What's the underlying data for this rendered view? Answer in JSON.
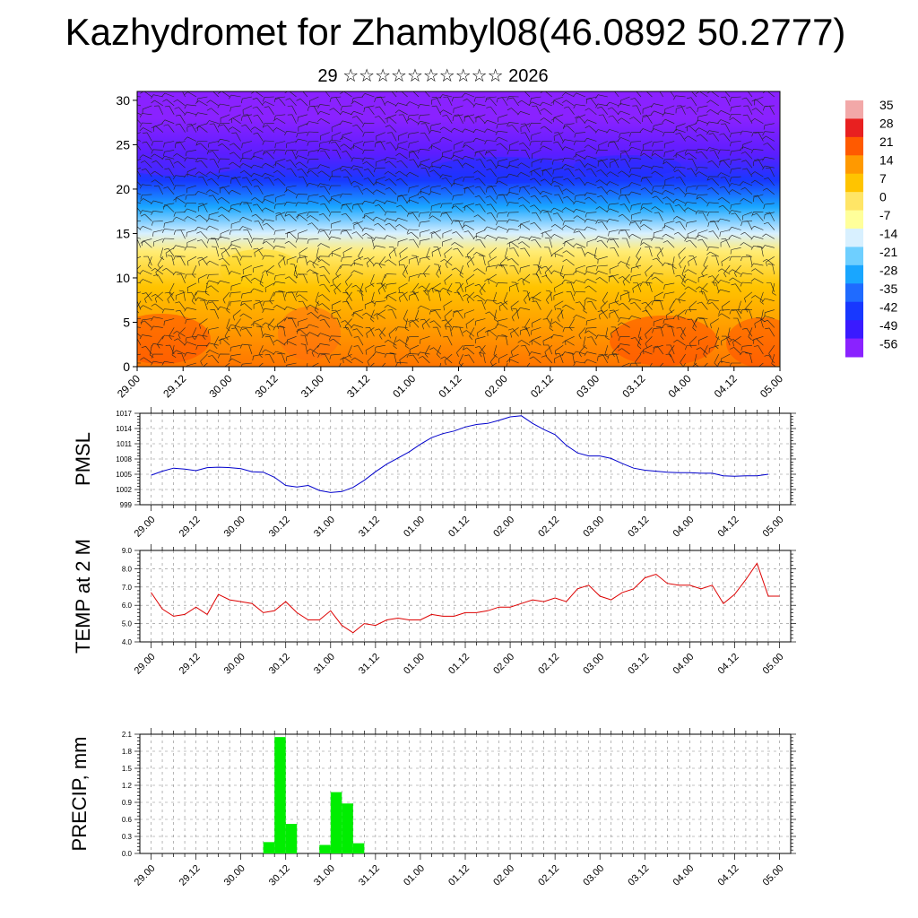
{
  "title": "Kazhydromet for Zhambyl08(46.0892 50.2777)",
  "subtitle": "29 ☆☆☆☆☆☆☆☆☆☆ 2026",
  "time_ticks": [
    "29.00",
    "29.12",
    "30.00",
    "30.12",
    "31.00",
    "31.12",
    "01.00",
    "01.12",
    "02.00",
    "02.12",
    "03.00",
    "03.12",
    "04.00",
    "04.12",
    "05.00"
  ],
  "chart_data": [
    {
      "type": "heatmap",
      "name": "temperature-wind cross-section",
      "title": "",
      "xlabel": "",
      "ylabel": "",
      "x_tick_labels": [
        "29.00",
        "29.12",
        "30.00",
        "30.12",
        "31.00",
        "31.12",
        "01.00",
        "01.12",
        "02.00",
        "02.12",
        "03.00",
        "03.12",
        "04.00",
        "04.12",
        "05.00"
      ],
      "ylim": [
        0,
        31
      ],
      "y_ticks": [
        0,
        5,
        10,
        15,
        20,
        25,
        30
      ],
      "colorbar": {
        "labels": [
          "35",
          "28",
          "21",
          "14",
          "7",
          "0",
          "-7",
          "-14",
          "-21",
          "-28",
          "-35",
          "-42",
          "-49",
          "-56"
        ],
        "colors": [
          "#f2a8a8",
          "#e82020",
          "#ff5a00",
          "#ff9900",
          "#ffc400",
          "#ffe566",
          "#ffff9a",
          "#d8f0ff",
          "#6ecfff",
          "#19a6ff",
          "#1f6bff",
          "#1838ff",
          "#3a1aff",
          "#8a22ff"
        ]
      },
      "level_band_temps": [
        {
          "level": 0,
          "temp": 18
        },
        {
          "level": 4,
          "temp": 14
        },
        {
          "level": 9,
          "temp": 7
        },
        {
          "level": 13,
          "temp": -2
        },
        {
          "level": 15,
          "temp": -14
        },
        {
          "level": 18,
          "temp": -28
        },
        {
          "level": 21,
          "temp": -42
        },
        {
          "level": 24,
          "temp": -52
        },
        {
          "level": 28,
          "temp": -56
        },
        {
          "level": 31,
          "temp": -60
        }
      ]
    },
    {
      "type": "line",
      "name": "PMSL",
      "ylabel": "PMSL",
      "ylim": [
        999,
        1017
      ],
      "y_tick_labels": [
        "999",
        "1002",
        "1005",
        "1008",
        "1011",
        "1014",
        "1017"
      ],
      "x_tick_labels": [
        "29.00",
        "29.12",
        "30.00",
        "30.12",
        "31.00",
        "31.12",
        "01.00",
        "01.12",
        "02.00",
        "02.12",
        "03.00",
        "03.12",
        "04.00",
        "04.12",
        "05.00"
      ],
      "color": "#0000cc",
      "values": [
        1004.8,
        1005.6,
        1006.2,
        1006.0,
        1005.7,
        1006.3,
        1006.4,
        1006.3,
        1006.1,
        1005.5,
        1005.4,
        1004.4,
        1002.8,
        1002.5,
        1002.8,
        1001.8,
        1001.4,
        1001.6,
        1002.4,
        1003.8,
        1005.5,
        1007.0,
        1008.2,
        1009.4,
        1010.9,
        1012.2,
        1013.0,
        1013.5,
        1014.3,
        1014.8,
        1015.0,
        1015.6,
        1016.3,
        1016.5,
        1015.0,
        1013.8,
        1012.8,
        1010.7,
        1009.2,
        1008.6,
        1008.6,
        1008.1,
        1007.1,
        1006.2,
        1005.8,
        1005.6,
        1005.4,
        1005.3,
        1005.3,
        1005.2,
        1005.2,
        1004.7,
        1004.6,
        1004.7,
        1004.7,
        1005.0
      ]
    },
    {
      "type": "line",
      "name": "TEMP at 2 M",
      "ylabel": "TEMP at 2 M",
      "ylim": [
        4.0,
        9.0
      ],
      "y_tick_labels": [
        "4.0",
        "5.0",
        "6.0",
        "7.0",
        "8.0",
        "9.0"
      ],
      "x_tick_labels": [
        "29.00",
        "29.12",
        "30.00",
        "30.12",
        "31.00",
        "31.12",
        "01.00",
        "01.12",
        "02.00",
        "02.12",
        "03.00",
        "03.12",
        "04.00",
        "04.12",
        "05.00"
      ],
      "color": "#dd0000",
      "values": [
        6.7,
        5.8,
        5.4,
        5.5,
        5.9,
        5.5,
        6.6,
        6.3,
        6.2,
        6.1,
        5.6,
        5.7,
        6.2,
        5.6,
        5.2,
        5.2,
        5.7,
        4.9,
        4.5,
        5.0,
        4.9,
        5.2,
        5.3,
        5.2,
        5.2,
        5.5,
        5.4,
        5.4,
        5.6,
        5.6,
        5.7,
        5.9,
        5.9,
        6.1,
        6.3,
        6.2,
        6.4,
        6.2,
        6.9,
        7.1,
        6.5,
        6.3,
        6.7,
        6.9,
        7.5,
        7.7,
        7.2,
        7.1,
        7.1,
        6.9,
        7.1,
        6.1,
        6.6,
        7.4,
        8.3,
        6.5,
        6.5
      ]
    },
    {
      "type": "bar",
      "name": "PRECIP, mm",
      "ylabel": "PRECIP, mm",
      "ylim": [
        0,
        2.1
      ],
      "y_tick_labels": [
        "0.0",
        "0.3",
        "0.6",
        "0.9",
        "1.2",
        "1.5",
        "1.8",
        "2.1"
      ],
      "x_tick_labels": [
        "29.00",
        "29.12",
        "30.00",
        "30.12",
        "31.00",
        "31.12",
        "01.00",
        "01.12",
        "02.00",
        "02.12",
        "03.00",
        "03.12",
        "04.00",
        "04.12",
        "05.00"
      ],
      "color": "#00ee00",
      "bars": [
        {
          "t": 10.5,
          "value": 0.2
        },
        {
          "t": 11.5,
          "value": 2.05
        },
        {
          "t": 12.5,
          "value": 0.52
        },
        {
          "t": 15.5,
          "value": 0.15
        },
        {
          "t": 16.5,
          "value": 1.08
        },
        {
          "t": 17.5,
          "value": 0.88
        },
        {
          "t": 18.5,
          "value": 0.18
        }
      ]
    }
  ]
}
